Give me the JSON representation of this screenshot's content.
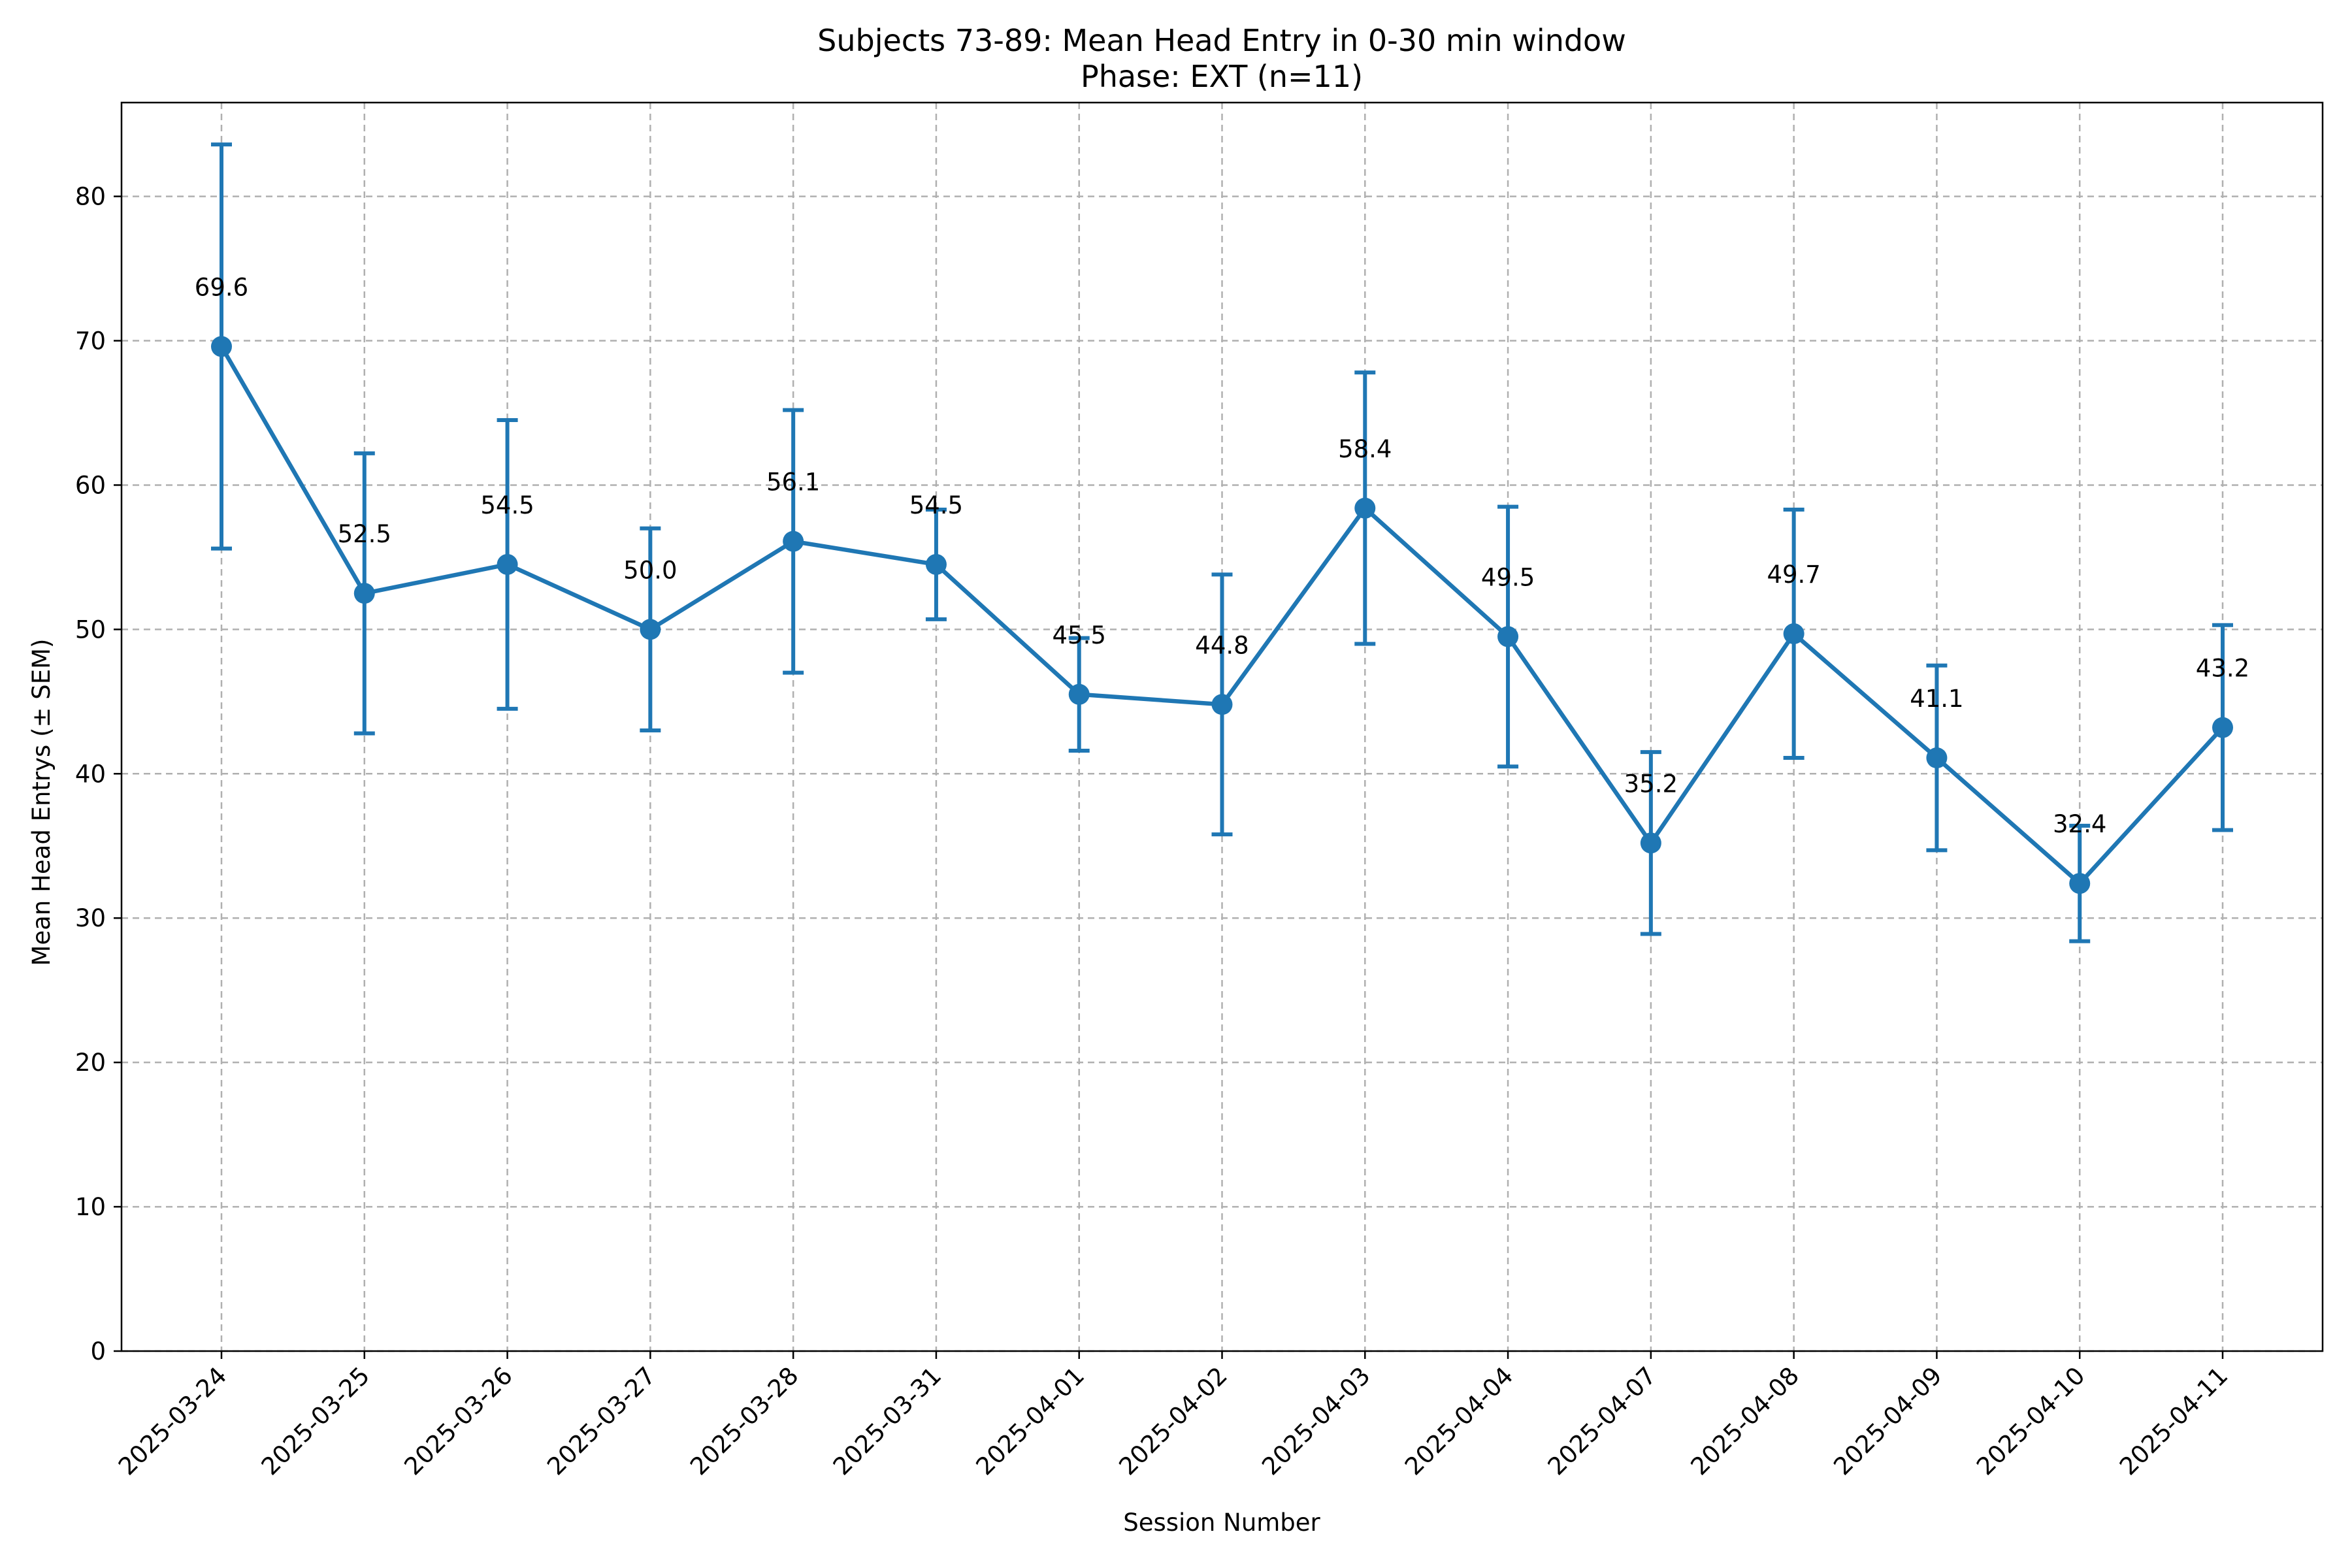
{
  "chart_data": {
    "type": "line",
    "title": "Subjects 73-89: Mean Head Entry in 0-30 min window",
    "subtitle": "Phase: EXT (n=11)",
    "xlabel": "Session Number",
    "ylabel": "Mean Head Entrys (± SEM)",
    "ylim": [
      0,
      86.5
    ],
    "yticks": [
      0,
      10,
      20,
      30,
      40,
      50,
      60,
      70,
      80
    ],
    "grid": true,
    "line_color": "#1f77b4",
    "categories": [
      "2025-03-24",
      "2025-03-25",
      "2025-03-26",
      "2025-03-27",
      "2025-03-28",
      "2025-03-31",
      "2025-04-01",
      "2025-04-02",
      "2025-04-03",
      "2025-04-04",
      "2025-04-07",
      "2025-04-08",
      "2025-04-09",
      "2025-04-10",
      "2025-04-11"
    ],
    "values": [
      69.6,
      52.5,
      54.5,
      50.0,
      56.1,
      54.5,
      45.5,
      44.8,
      58.4,
      49.5,
      35.2,
      49.7,
      41.1,
      32.4,
      43.2
    ],
    "data_labels": [
      "69.6",
      "52.5",
      "54.5",
      "50.0",
      "56.1",
      "54.5",
      "45.5",
      "44.8",
      "58.4",
      "49.5",
      "35.2",
      "49.7",
      "41.1",
      "32.4",
      "43.2"
    ],
    "errors": [
      14.0,
      9.7,
      10.0,
      7.0,
      9.1,
      3.8,
      3.9,
      9.0,
      9.4,
      9.0,
      6.3,
      8.6,
      6.4,
      4.0,
      7.1
    ]
  }
}
